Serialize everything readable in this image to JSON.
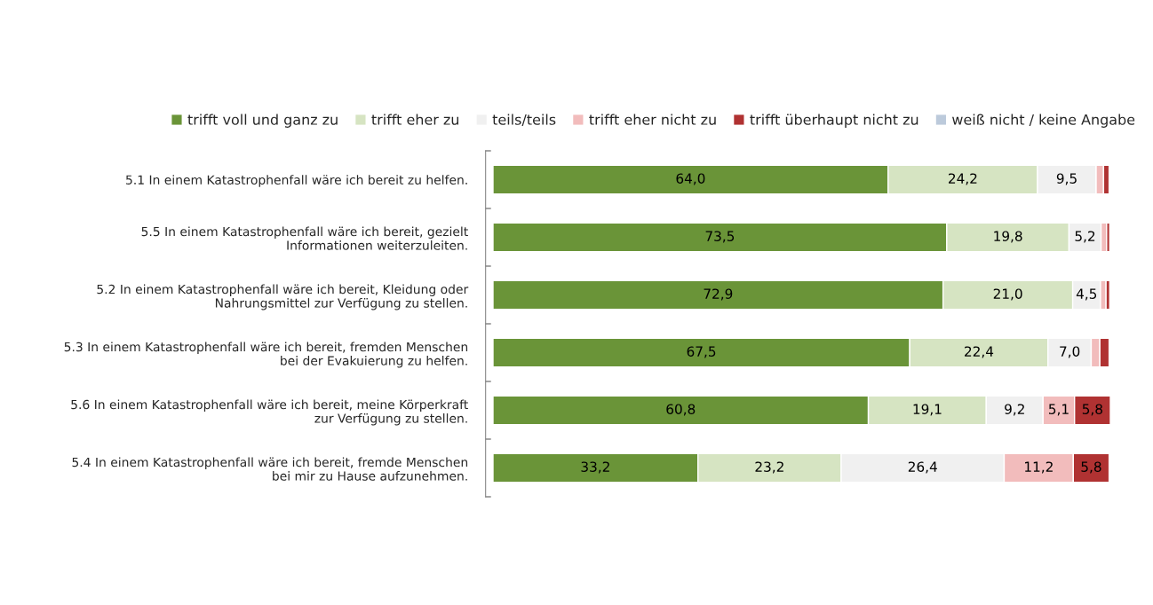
{
  "chart_data": {
    "type": "bar",
    "orientation": "horizontal",
    "stacked": true,
    "legend": "top",
    "grid": false,
    "tick_labels": "y",
    "xlim": [
      0,
      100
    ],
    "categories": [
      "5.1 In einem Katastrophenfall wäre ich bereit zu helfen.",
      "5.5 In einem Katastrophenfall wäre ich bereit, gezielt\nInformationen weiterzuleiten.",
      "5.2 In einem Katastrophenfall wäre ich bereit, Kleidung oder\nNahrungsmittel zur Verfügung zu stellen.",
      "5.3 In einem Katastrophenfall wäre ich bereit, fremden Menschen\nbei der Evakuierung zu helfen.",
      "5.6 In einem Katastrophenfall wäre ich bereit, meine Körperkraft\nzur Verfügung zu stellen.",
      "5.4 In einem Katastrophenfall wäre ich bereit, fremde Menschen\nbei mir zu Hause aufzunehmen."
    ],
    "series": [
      {
        "name": "trifft voll und ganz zu",
        "color": "#6a9438",
        "values": [
          64.0,
          73.5,
          72.9,
          67.5,
          60.8,
          33.2
        ],
        "value_labels": [
          "64,0",
          "73,5",
          "72,9",
          "67,5",
          "60,8",
          "33,2"
        ]
      },
      {
        "name": "trifft eher zu",
        "color": "#d6e4c2",
        "values": [
          24.2,
          19.8,
          21.0,
          22.4,
          19.1,
          23.2
        ],
        "value_labels": [
          "24,2",
          "19,8",
          "21,0",
          "22,4",
          "19,1",
          "23,2"
        ]
      },
      {
        "name": "teils/teils",
        "color": "#f0f0f0",
        "values": [
          9.5,
          5.2,
          4.5,
          7.0,
          9.2,
          26.4
        ],
        "value_labels": [
          "9,5",
          "5,2",
          "4,5",
          "7,0",
          "9,2",
          "26,4"
        ]
      },
      {
        "name": "trifft eher nicht zu",
        "color": "#f2bcbc",
        "values": [
          1.2,
          0.9,
          0.9,
          1.4,
          5.1,
          11.2
        ],
        "value_labels": [
          null,
          null,
          null,
          null,
          "5,1",
          "11,2"
        ]
      },
      {
        "name": "trifft überhaupt nicht zu",
        "color": "#b03232",
        "values": [
          0.9,
          0.5,
          0.6,
          1.5,
          5.8,
          5.8
        ],
        "value_labels": [
          null,
          null,
          null,
          null,
          "5,8",
          "5,8"
        ]
      },
      {
        "name": "weiß nicht / keine Angabe",
        "color": "#bccadb",
        "values": [
          null,
          null,
          null,
          null,
          null,
          null
        ],
        "value_labels": [
          null,
          null,
          null,
          null,
          null,
          null
        ]
      }
    ]
  }
}
